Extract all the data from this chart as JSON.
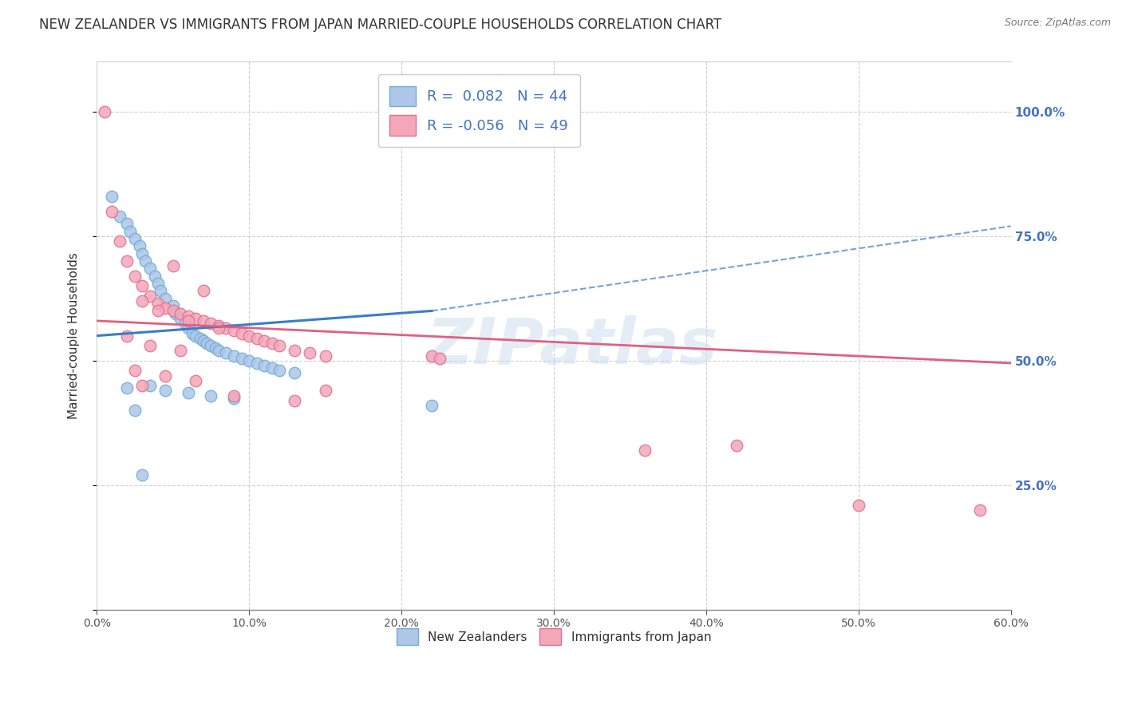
{
  "title": "NEW ZEALANDER VS IMMIGRANTS FROM JAPAN MARRIED-COUPLE HOUSEHOLDS CORRELATION CHART",
  "source": "Source: ZipAtlas.com",
  "ylabel_label": "Married-couple Households",
  "legend_bottom": [
    "New Zealanders",
    "Immigrants from Japan"
  ],
  "watermark": "ZIPatlas",
  "blue_scatter_x": [
    1.0,
    1.5,
    2.0,
    2.2,
    2.5,
    2.8,
    3.0,
    3.2,
    3.5,
    3.8,
    4.0,
    4.2,
    4.5,
    5.0,
    5.2,
    5.5,
    5.8,
    6.0,
    6.3,
    6.5,
    6.8,
    7.0,
    7.2,
    7.5,
    7.8,
    8.0,
    8.5,
    9.0,
    9.5,
    10.0,
    10.5,
    11.0,
    11.5,
    12.0,
    13.0,
    3.5,
    2.0,
    4.5,
    6.0,
    7.5,
    9.0,
    22.0,
    2.5,
    3.0
  ],
  "blue_scatter_y": [
    83.0,
    79.0,
    77.5,
    76.0,
    74.5,
    73.0,
    71.5,
    70.0,
    68.5,
    67.0,
    65.5,
    64.0,
    62.5,
    61.0,
    59.5,
    58.5,
    57.5,
    56.5,
    55.5,
    55.0,
    54.5,
    54.0,
    53.5,
    53.0,
    52.5,
    52.0,
    51.5,
    51.0,
    50.5,
    50.0,
    49.5,
    49.0,
    48.5,
    48.0,
    47.5,
    45.0,
    44.5,
    44.0,
    43.5,
    43.0,
    42.5,
    41.0,
    40.0,
    27.0
  ],
  "pink_scatter_x": [
    0.5,
    1.0,
    1.5,
    2.0,
    2.5,
    3.0,
    3.5,
    4.0,
    4.5,
    5.0,
    5.5,
    6.0,
    6.5,
    7.0,
    7.5,
    8.0,
    8.5,
    9.0,
    9.5,
    10.0,
    10.5,
    11.0,
    11.5,
    12.0,
    13.0,
    14.0,
    15.0,
    5.0,
    7.0,
    3.0,
    4.0,
    6.0,
    8.0,
    2.0,
    3.5,
    5.5,
    22.0,
    22.5,
    3.0,
    15.0,
    9.0,
    42.0,
    36.0,
    50.0,
    58.0,
    2.5,
    4.5,
    6.5,
    13.0
  ],
  "pink_scatter_y": [
    100.0,
    80.0,
    74.0,
    70.0,
    67.0,
    65.0,
    63.0,
    61.5,
    60.5,
    60.0,
    59.5,
    59.0,
    58.5,
    58.0,
    57.5,
    57.0,
    56.5,
    56.0,
    55.5,
    55.0,
    54.5,
    54.0,
    53.5,
    53.0,
    52.0,
    51.5,
    51.0,
    69.0,
    64.0,
    62.0,
    60.0,
    58.0,
    56.5,
    55.0,
    53.0,
    52.0,
    51.0,
    50.5,
    45.0,
    44.0,
    43.0,
    33.0,
    32.0,
    21.0,
    20.0,
    48.0,
    47.0,
    46.0,
    42.0
  ],
  "blue_line_x": [
    0.0,
    22.0,
    60.0
  ],
  "blue_line_y": [
    55.0,
    60.0,
    77.0
  ],
  "blue_solid_end_x": 22.0,
  "pink_line_x": [
    0.0,
    60.0
  ],
  "pink_line_y": [
    58.0,
    49.5
  ],
  "bg_color": "#ffffff",
  "grid_color": "#d0d0d0",
  "scatter_blue_face": "#aec6e8",
  "scatter_blue_edge": "#6baed6",
  "scatter_pink_face": "#f4a7b9",
  "scatter_pink_edge": "#e07090",
  "trend_blue_color": "#3a7dc9",
  "trend_pink_color": "#e06080",
  "title_fontsize": 12,
  "axis_label_fontsize": 11,
  "tick_fontsize": 10,
  "scatter_size": 110,
  "xlim": [
    0,
    60
  ],
  "ylim": [
    0,
    110
  ],
  "xticks": [
    0,
    10,
    20,
    30,
    40,
    50,
    60
  ],
  "xtick_labels": [
    "0.0%",
    "10.0%",
    "20.0%",
    "30.0%",
    "40.0%",
    "50.0%",
    "60.0%"
  ],
  "yticks": [
    0,
    25,
    50,
    75,
    100
  ],
  "ytick_labels_right": [
    "",
    "25.0%",
    "50.0%",
    "75.0%",
    "100.0%"
  ],
  "right_tick_color": "#4472c4",
  "legend_R1": "R =  0.082",
  "legend_N1": "N = 44",
  "legend_R2": "R = -0.056",
  "legend_N2": "N = 49"
}
